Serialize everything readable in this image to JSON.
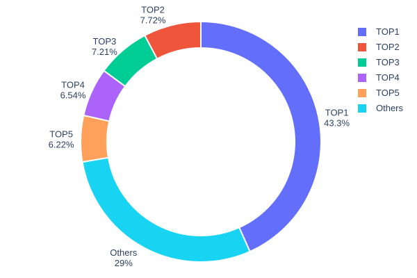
{
  "chart_data": {
    "type": "pie",
    "subtype": "donut",
    "title": "",
    "hole_ratio": 0.78,
    "labels_position": "outside",
    "categories": [
      "TOP1",
      "TOP2",
      "TOP3",
      "TOP4",
      "TOP5",
      "Others"
    ],
    "values": [
      43.3,
      7.72,
      7.21,
      6.54,
      6.22,
      29
    ],
    "percent_labels": [
      "43.3%",
      "7.72%",
      "7.21%",
      "6.54%",
      "6.22%",
      "29%"
    ],
    "colors": [
      "#636efa",
      "#ef553b",
      "#00cc96",
      "#ab63fa",
      "#ffa15a",
      "#19d3f3"
    ],
    "clockwise_order_from_top": [
      "TOP1",
      "Others",
      "TOP5",
      "TOP4",
      "TOP3",
      "TOP2"
    ],
    "text_color": "#2a3f5f",
    "background": "#ffffff",
    "legend": {
      "position": "top-right",
      "entries": [
        {
          "label": "TOP1",
          "color": "#636efa"
        },
        {
          "label": "TOP2",
          "color": "#ef553b"
        },
        {
          "label": "TOP3",
          "color": "#00cc96"
        },
        {
          "label": "TOP4",
          "color": "#ab63fa"
        },
        {
          "label": "TOP5",
          "color": "#ffa15a"
        },
        {
          "label": "Others",
          "color": "#19d3f3"
        }
      ]
    }
  }
}
